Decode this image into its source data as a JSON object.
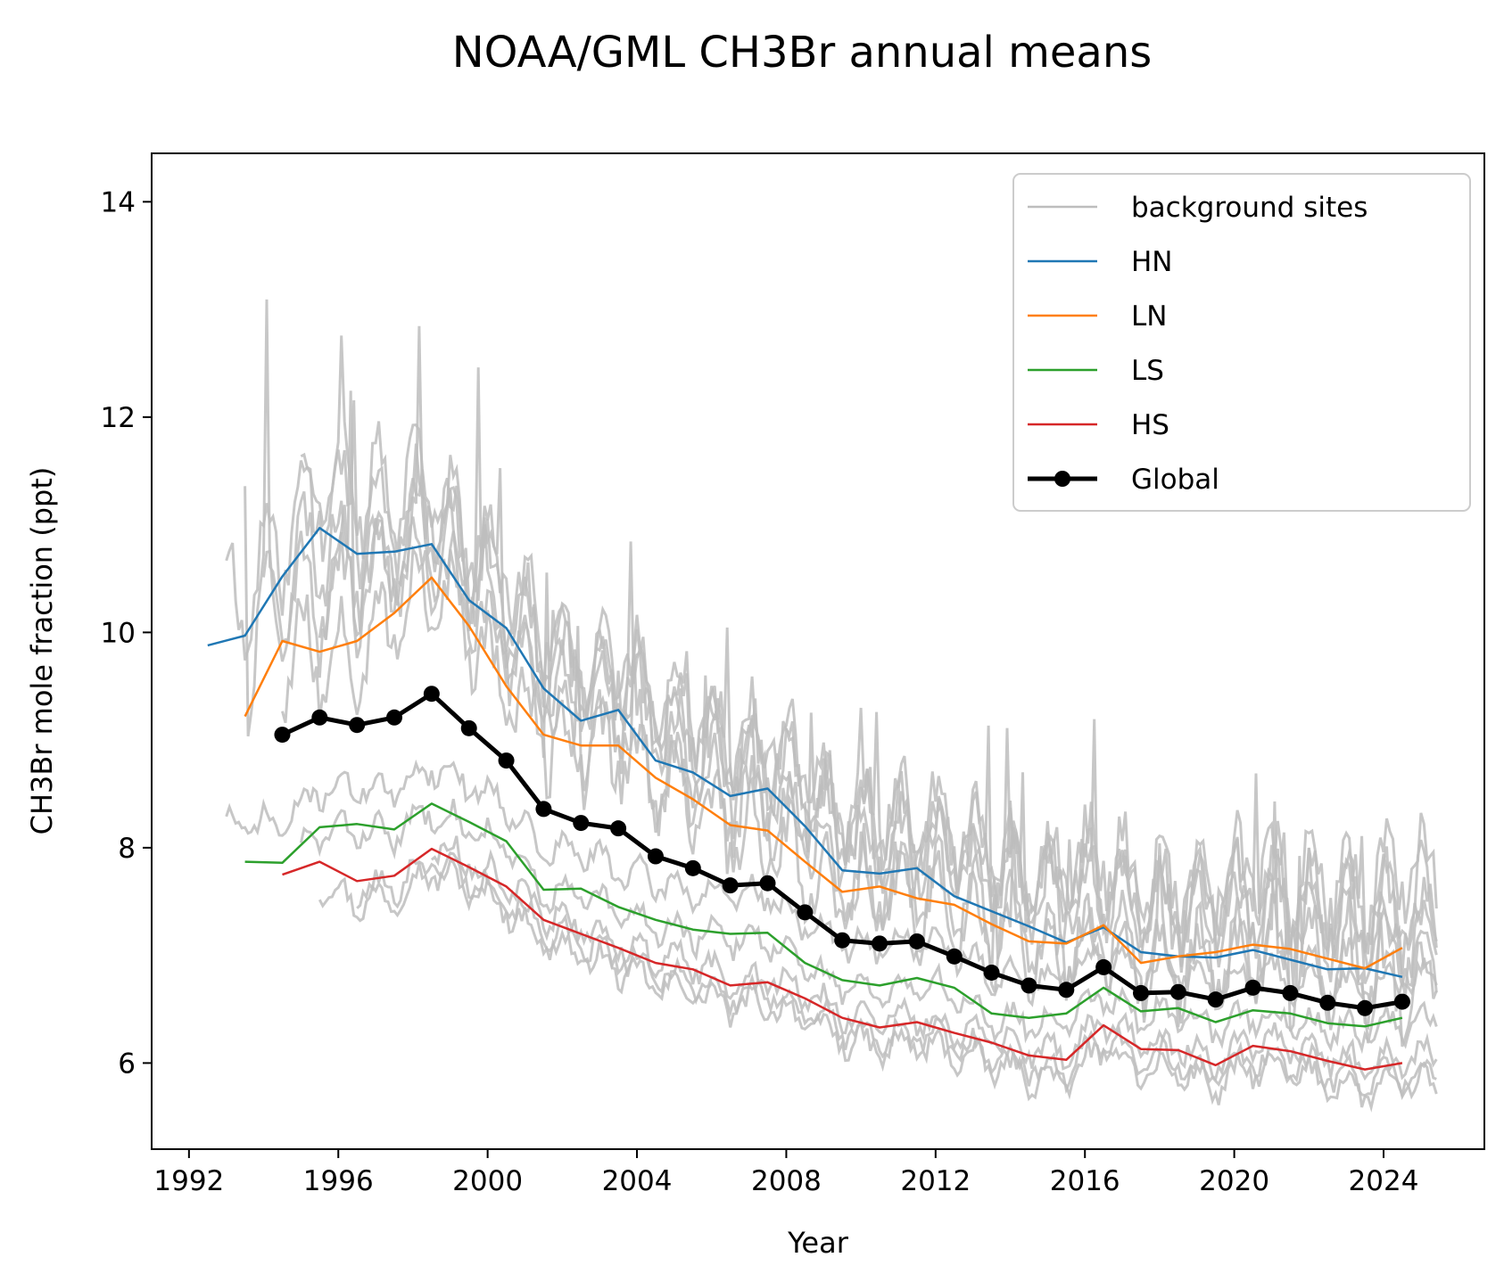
{
  "chart_data": {
    "type": "line",
    "title": "NOAA/GML CH3Br annual means",
    "xlabel": "Year",
    "ylabel": "CH3Br mole fraction (ppt)",
    "xlim": [
      1991,
      2026.7
    ],
    "ylim": [
      5.2,
      14.45
    ],
    "xticks": [
      1992,
      1996,
      2000,
      2004,
      2008,
      2012,
      2016,
      2020,
      2024
    ],
    "yticks": [
      6,
      8,
      10,
      12,
      14
    ],
    "grid": false,
    "legend_position": "top-right",
    "colors": {
      "background": "#bdbdbd",
      "HN": "#1f77b4",
      "LN": "#ff7f0e",
      "LS": "#2ca02c",
      "HS": "#d62728",
      "Global": "#000000"
    },
    "legend": [
      "background sites",
      "HN",
      "LN",
      "LS",
      "HS",
      "Global"
    ],
    "series": [
      {
        "name": "HN",
        "x": [
          1992.5,
          1993.5,
          1994.5,
          1995.5,
          1996.5,
          1997.5,
          1998.5,
          1999.5,
          2000.5,
          2001.5,
          2002.5,
          2003.5,
          2004.5,
          2005.5,
          2006.5,
          2007.5,
          2008.5,
          2009.5,
          2010.5,
          2011.5,
          2012.5,
          2013.5,
          2014.5,
          2015.5,
          2016.5,
          2017.5,
          2018.5,
          2019.5,
          2020.5,
          2021.5,
          2022.5,
          2023.5,
          2024.5
        ],
        "values": [
          9.88,
          9.97,
          10.52,
          10.97,
          10.73,
          10.75,
          10.82,
          10.3,
          10.04,
          9.48,
          9.18,
          9.28,
          8.81,
          8.7,
          8.48,
          8.55,
          8.2,
          7.79,
          7.76,
          7.81,
          7.55,
          7.41,
          7.27,
          7.12,
          7.26,
          7.03,
          6.99,
          6.98,
          7.05,
          6.96,
          6.87,
          6.88,
          6.8
        ]
      },
      {
        "name": "LN",
        "x": [
          1993.5,
          1994.5,
          1995.5,
          1996.5,
          1997.5,
          1998.5,
          1999.5,
          2000.5,
          2001.5,
          2002.5,
          2003.5,
          2004.5,
          2005.5,
          2006.5,
          2007.5,
          2008.5,
          2009.5,
          2010.5,
          2011.5,
          2012.5,
          2013.5,
          2014.5,
          2015.5,
          2016.5,
          2017.5,
          2018.5,
          2019.5,
          2020.5,
          2021.5,
          2022.5,
          2023.5,
          2024.5
        ],
        "values": [
          9.22,
          9.92,
          9.82,
          9.92,
          10.18,
          10.51,
          10.06,
          9.5,
          9.05,
          8.95,
          8.95,
          8.65,
          8.45,
          8.21,
          8.16,
          7.87,
          7.59,
          7.64,
          7.53,
          7.47,
          7.29,
          7.13,
          7.11,
          7.28,
          6.93,
          6.99,
          7.03,
          7.1,
          7.06,
          6.97,
          6.88,
          7.07
        ]
      },
      {
        "name": "LS",
        "x": [
          1993.5,
          1994.5,
          1995.5,
          1996.5,
          1997.5,
          1998.5,
          1999.5,
          2000.5,
          2001.5,
          2002.5,
          2003.5,
          2004.5,
          2005.5,
          2006.5,
          2007.5,
          2008.5,
          2009.5,
          2010.5,
          2011.5,
          2012.5,
          2013.5,
          2014.5,
          2015.5,
          2016.5,
          2017.5,
          2018.5,
          2019.5,
          2020.5,
          2021.5,
          2022.5,
          2023.5,
          2024.5
        ],
        "values": [
          7.87,
          7.86,
          8.19,
          8.22,
          8.17,
          8.41,
          8.24,
          8.06,
          7.61,
          7.62,
          7.45,
          7.33,
          7.24,
          7.2,
          7.21,
          6.93,
          6.77,
          6.72,
          6.79,
          6.7,
          6.46,
          6.42,
          6.46,
          6.7,
          6.48,
          6.51,
          6.38,
          6.49,
          6.46,
          6.37,
          6.34,
          6.42
        ]
      },
      {
        "name": "HS",
        "x": [
          1994.5,
          1995.5,
          1996.5,
          1997.5,
          1998.5,
          1999.5,
          2000.5,
          2001.5,
          2002.5,
          2003.5,
          2004.5,
          2005.5,
          2006.5,
          2007.5,
          2008.5,
          2009.5,
          2010.5,
          2011.5,
          2012.5,
          2013.5,
          2014.5,
          2015.5,
          2016.5,
          2017.5,
          2018.5,
          2019.5,
          2020.5,
          2021.5,
          2022.5,
          2023.5,
          2024.5
        ],
        "values": [
          7.75,
          7.87,
          7.69,
          7.74,
          7.99,
          7.82,
          7.64,
          7.33,
          7.2,
          7.07,
          6.93,
          6.87,
          6.72,
          6.75,
          6.6,
          6.42,
          6.33,
          6.38,
          6.28,
          6.19,
          6.07,
          6.03,
          6.35,
          6.13,
          6.12,
          5.98,
          6.16,
          6.11,
          6.02,
          5.94,
          6.0
        ]
      },
      {
        "name": "Global",
        "x": [
          1994.5,
          1995.5,
          1996.5,
          1997.5,
          1998.5,
          1999.5,
          2000.5,
          2001.5,
          2002.5,
          2003.5,
          2004.5,
          2005.5,
          2006.5,
          2007.5,
          2008.5,
          2009.5,
          2010.5,
          2011.5,
          2012.5,
          2013.5,
          2014.5,
          2015.5,
          2016.5,
          2017.5,
          2018.5,
          2019.5,
          2020.5,
          2021.5,
          2022.5,
          2023.5,
          2024.5
        ],
        "values": [
          9.05,
          9.21,
          9.14,
          9.21,
          9.43,
          9.11,
          8.81,
          8.36,
          8.23,
          8.18,
          7.92,
          7.81,
          7.65,
          7.67,
          7.4,
          7.14,
          7.11,
          7.13,
          6.99,
          6.84,
          6.72,
          6.68,
          6.89,
          6.65,
          6.66,
          6.59,
          6.7,
          6.65,
          6.56,
          6.51,
          6.57
        ]
      }
    ],
    "background_sites": {
      "description_free": true,
      "sites": [
        {
          "base": "HN",
          "offset": 0.35,
          "start": 1993.0,
          "seed": 11
        },
        {
          "base": "HN",
          "offset": -0.1,
          "start": 1994.0,
          "seed": 23
        },
        {
          "base": "HN",
          "offset": 0.55,
          "start": 1995.0,
          "seed": 37
        },
        {
          "base": "LN",
          "offset": 0.45,
          "start": 1993.5,
          "seed": 41
        },
        {
          "base": "LN",
          "offset": -0.05,
          "start": 1994.5,
          "seed": 53
        },
        {
          "base": "LN",
          "offset": 0.7,
          "start": 1995.5,
          "seed": 67
        },
        {
          "base": "LS",
          "offset": 0.35,
          "start": 1993.0,
          "seed": 71
        },
        {
          "base": "LS",
          "offset": -0.05,
          "start": 1995.0,
          "seed": 83
        },
        {
          "base": "HS",
          "offset": -0.2,
          "start": 1995.5,
          "seed": 97
        },
        {
          "base": "HS",
          "offset": -0.1,
          "start": 1996.5,
          "seed": 101
        },
        {
          "base": "HS",
          "offset": 0.05,
          "start": 1998.5,
          "seed": 113
        }
      ]
    }
  }
}
